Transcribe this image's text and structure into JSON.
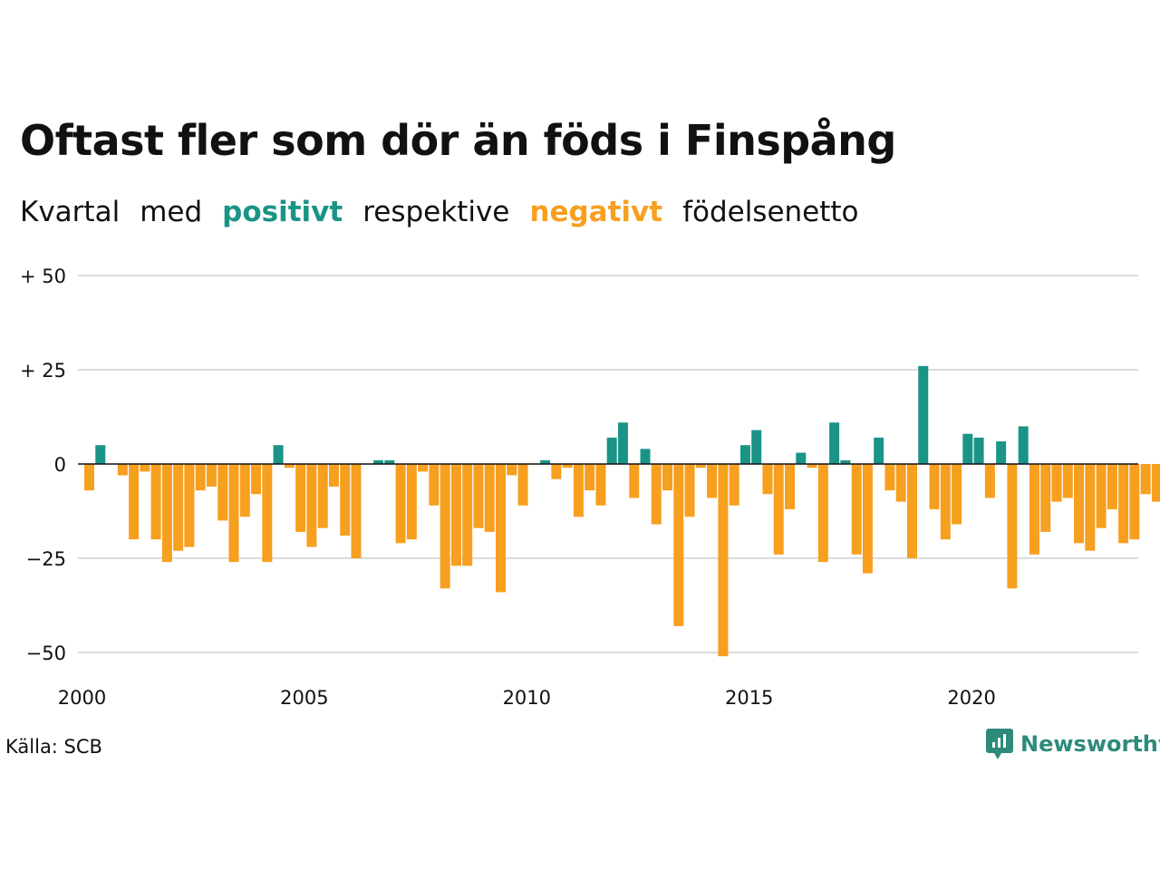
{
  "title": "Oftast fler som dör än föds i Finspång",
  "subtitle": {
    "part1": "Kvartal",
    "part2": "med",
    "positive": "positivt",
    "part3": "respektive",
    "negative": "negativt",
    "part4": "födelsenetto"
  },
  "source": "Källa: SCB",
  "brand": {
    "name": "Newsworthy",
    "icon": "newsworthy-logo-icon"
  },
  "colors": {
    "positive": "#1a9487",
    "negative": "#f79f1f",
    "text": "#111111",
    "grid": "#dcdcdc",
    "brand": "#2e8b7a"
  },
  "chart_data": {
    "type": "bar",
    "title": "Oftast fler som dör än föds i Finspång",
    "xlabel": "",
    "ylabel": "",
    "ylim": [
      -52,
      52
    ],
    "y_ticks": [
      {
        "value": 50,
        "label": "+ 50"
      },
      {
        "value": 25,
        "label": "+ 25"
      },
      {
        "value": 0,
        "label": "0"
      },
      {
        "value": -25,
        "label": "−25"
      },
      {
        "value": -50,
        "label": "−50"
      }
    ],
    "x_ticks": [
      {
        "value": 2000,
        "label": "2000"
      },
      {
        "value": 2005,
        "label": "2005"
      },
      {
        "value": 2010,
        "label": "2010"
      },
      {
        "value": 2015,
        "label": "2015"
      },
      {
        "value": 2020,
        "label": "2020"
      }
    ],
    "start_year": 2000,
    "grid": true,
    "legend": "in subtitle",
    "values": [
      -7,
      5,
      0,
      -3,
      -20,
      -2,
      -20,
      -26,
      -23,
      -22,
      -7,
      -6,
      -15,
      -26,
      -14,
      -8,
      -26,
      5,
      -1,
      -18,
      -22,
      -17,
      -6,
      -19,
      -25,
      0,
      1,
      1,
      -21,
      -20,
      -2,
      -11,
      -33,
      -27,
      -27,
      -17,
      -18,
      -34,
      -3,
      -11,
      0,
      1,
      -4,
      -1,
      -14,
      -7,
      -11,
      7,
      11,
      -9,
      4,
      -16,
      -7,
      -43,
      -14,
      -1,
      -9,
      -51,
      -11,
      5,
      9,
      -8,
      -24,
      -12,
      3,
      -1,
      -26,
      11,
      1,
      -24,
      -29,
      7,
      -7,
      -10,
      -25,
      26,
      -12,
      -20,
      -16,
      8,
      7,
      -9,
      6,
      -33,
      10,
      -24,
      -18,
      -10,
      -9,
      -21,
      -23,
      -17,
      -12,
      -21,
      -20,
      -8,
      -10
    ]
  }
}
